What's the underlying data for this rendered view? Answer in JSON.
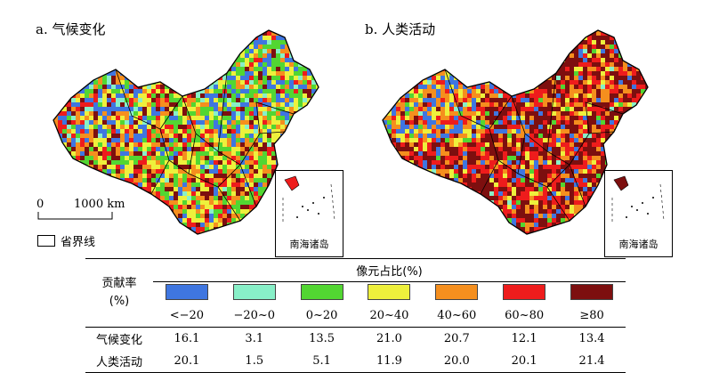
{
  "panels": [
    {
      "title": "a. 气候变化"
    },
    {
      "title": "b. 人类活动"
    }
  ],
  "inset_label": "南海诸岛",
  "scale": {
    "zero": "0",
    "distance": "1000 km"
  },
  "legend": {
    "province_boundary": "省界线"
  },
  "table": {
    "row_header": {
      "line1": "贡献率",
      "line2": "(%)"
    },
    "column_group": "像元占比(%)",
    "categories": [
      {
        "label": "<−20",
        "color": "#3f76e0"
      },
      {
        "label": "−20~0",
        "color": "#88f0c8"
      },
      {
        "label": "0~20",
        "color": "#52d632"
      },
      {
        "label": "20~40",
        "color": "#eef03c"
      },
      {
        "label": "40~60",
        "color": "#f58f1e"
      },
      {
        "label": "60~80",
        "color": "#ee1c1c"
      },
      {
        "label": "≥80",
        "color": "#7d0f0f"
      }
    ],
    "rows": [
      {
        "label": "气候变化",
        "values": [
          "16.1",
          "3.1",
          "13.5",
          "21.0",
          "20.7",
          "12.1",
          "13.4"
        ]
      },
      {
        "label": "人类活动",
        "values": [
          "20.1",
          "1.5",
          "5.1",
          "11.9",
          "20.0",
          "20.1",
          "21.4"
        ]
      }
    ]
  },
  "map_colors": {
    "climate": [
      "#3f76e0",
      "#88f0c8",
      "#52d632",
      "#eef03c",
      "#f58f1e",
      "#ee1c1c",
      "#7d0f0f"
    ],
    "human": [
      "#3f76e0",
      "#88f0c8",
      "#52d632",
      "#eef03c",
      "#f58f1e",
      "#ee1c1c",
      "#7d0f0f"
    ]
  }
}
